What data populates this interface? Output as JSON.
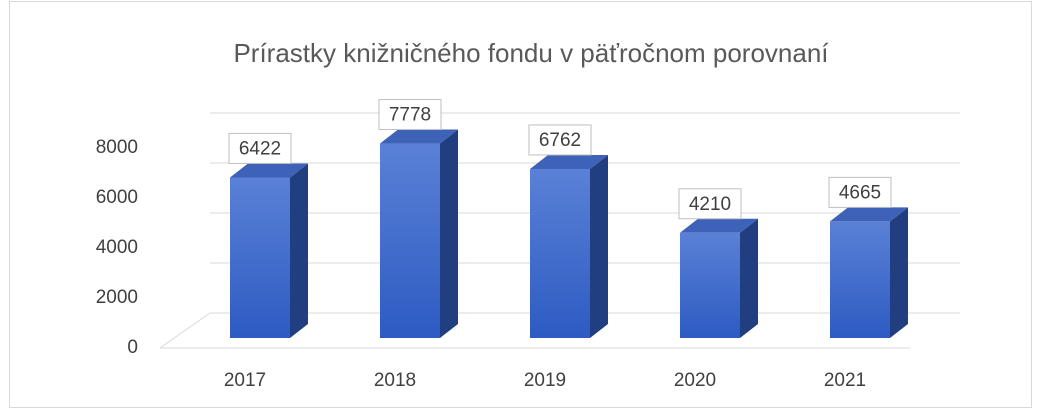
{
  "chart_data": {
    "type": "bar3d",
    "title": "Prírastky knižničného fondu v päťročnom porovnaní",
    "categories": [
      "2017",
      "2018",
      "2019",
      "2020",
      "2021"
    ],
    "values": [
      6422,
      7778,
      6762,
      4210,
      4665
    ],
    "color": "#3a66c8",
    "ylim": [
      0,
      8000
    ],
    "yticks": [
      0,
      2000,
      4000,
      6000,
      8000
    ],
    "grid": true
  }
}
